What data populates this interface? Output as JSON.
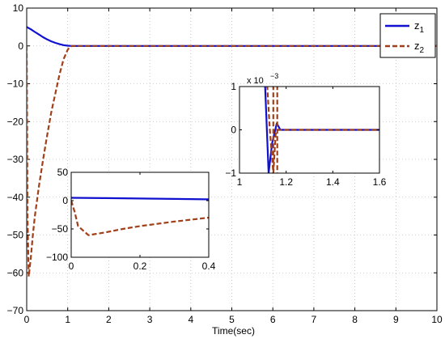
{
  "chart_data": [
    {
      "id": "main",
      "type": "line",
      "xlabel": "Time(sec)",
      "ylabel": "",
      "xlim": [
        0,
        10
      ],
      "ylim": [
        -70,
        10
      ],
      "xticks": [
        0,
        1,
        2,
        3,
        4,
        5,
        6,
        7,
        8,
        9,
        10
      ],
      "yticks": [
        10,
        0,
        -10,
        -20,
        -30,
        -40,
        -50,
        -60,
        -70
      ],
      "grid": true,
      "legend": {
        "placement": "top-right",
        "entries": [
          "z_1",
          "z_2"
        ]
      },
      "series": [
        {
          "name": "z_1",
          "color": "#1010d0",
          "style": "solid",
          "x": [
            0,
            0.1,
            0.2,
            0.3,
            0.4,
            0.5,
            0.6,
            0.7,
            0.8,
            0.9,
            1.0,
            1.1,
            1.2,
            2,
            4,
            6,
            8,
            10
          ],
          "y": [
            5,
            4.4,
            3.7,
            3.0,
            2.3,
            1.7,
            1.2,
            0.8,
            0.45,
            0.2,
            0.05,
            0,
            0,
            0,
            0,
            0,
            0,
            0
          ]
        },
        {
          "name": "z_2",
          "color": "#a0401a",
          "style": "dashed",
          "x": [
            0,
            0.01,
            0.02,
            0.05,
            0.1,
            0.15,
            0.2,
            0.3,
            0.4,
            0.5,
            0.6,
            0.7,
            0.8,
            0.9,
            1.0,
            1.05,
            1.1,
            1.2,
            2,
            4,
            6,
            8,
            10
          ],
          "y": [
            0,
            -20,
            -45,
            -61,
            -56,
            -50,
            -45,
            -37,
            -30,
            -23.5,
            -17.5,
            -12.5,
            -7.5,
            -3.5,
            -1,
            -0.3,
            0,
            0,
            0,
            0,
            0,
            0,
            0
          ]
        }
      ]
    },
    {
      "id": "inset-right",
      "type": "line",
      "xlim": [
        1,
        1.6
      ],
      "ylim": [
        -1,
        1
      ],
      "xticks": [
        1,
        1.2,
        1.4,
        1.6
      ],
      "xtick_labels": [
        "1",
        "1.2",
        "1.4",
        "1.6"
      ],
      "yticks": [
        1,
        0,
        -1
      ],
      "ytick_labels": [
        "1",
        "0",
        "−1"
      ],
      "scale_label": "x 10",
      "scale_exponent": "−3",
      "series": [
        {
          "name": "z_1",
          "color": "#1010d0",
          "style": "solid",
          "x": [
            1.0,
            1.11,
            1.125,
            1.14,
            1.16,
            1.175,
            1.6
          ],
          "y": [
            1.3,
            1.0,
            -1.0,
            -0.3,
            0.15,
            0,
            0
          ]
        },
        {
          "name": "z_2",
          "color": "#a0401a",
          "style": "dashed",
          "segments": [
            {
              "x": [
                1.117,
                1.13,
                1.145,
                1.155,
                1.165,
                1.6
              ],
              "y": [
                1.2,
                0.0,
                -1.0,
                -0.1,
                0.0,
                0.0
              ]
            },
            {
              "x": [
                1.145,
                1.145
              ],
              "y": [
                1.2,
                -1.2
              ]
            },
            {
              "x": [
                1.162,
                1.162
              ],
              "y": [
                1.2,
                -1.2
              ]
            }
          ]
        }
      ]
    },
    {
      "id": "inset-left",
      "type": "line",
      "xlim": [
        0,
        0.4
      ],
      "ylim": [
        -100,
        50
      ],
      "xticks": [
        0,
        0.2,
        0.4
      ],
      "xtick_labels": [
        "0",
        "0.2",
        "0.4"
      ],
      "yticks": [
        50,
        0,
        -50,
        -100
      ],
      "ytick_labels": [
        "50",
        "0",
        "−50",
        "−100"
      ],
      "series": [
        {
          "name": "z_1",
          "color": "#1010d0",
          "style": "solid",
          "x": [
            0,
            0.1,
            0.2,
            0.3,
            0.4
          ],
          "y": [
            5,
            4.4,
            3.7,
            3.0,
            2.3
          ]
        },
        {
          "name": "z_2",
          "color": "#a0401a",
          "style": "dashed",
          "x": [
            0,
            0.01,
            0.02,
            0.05,
            0.1,
            0.15,
            0.2,
            0.3,
            0.4
          ],
          "y": [
            0,
            -20,
            -45,
            -61,
            -56,
            -50,
            -45,
            -37,
            -30
          ]
        }
      ]
    }
  ]
}
